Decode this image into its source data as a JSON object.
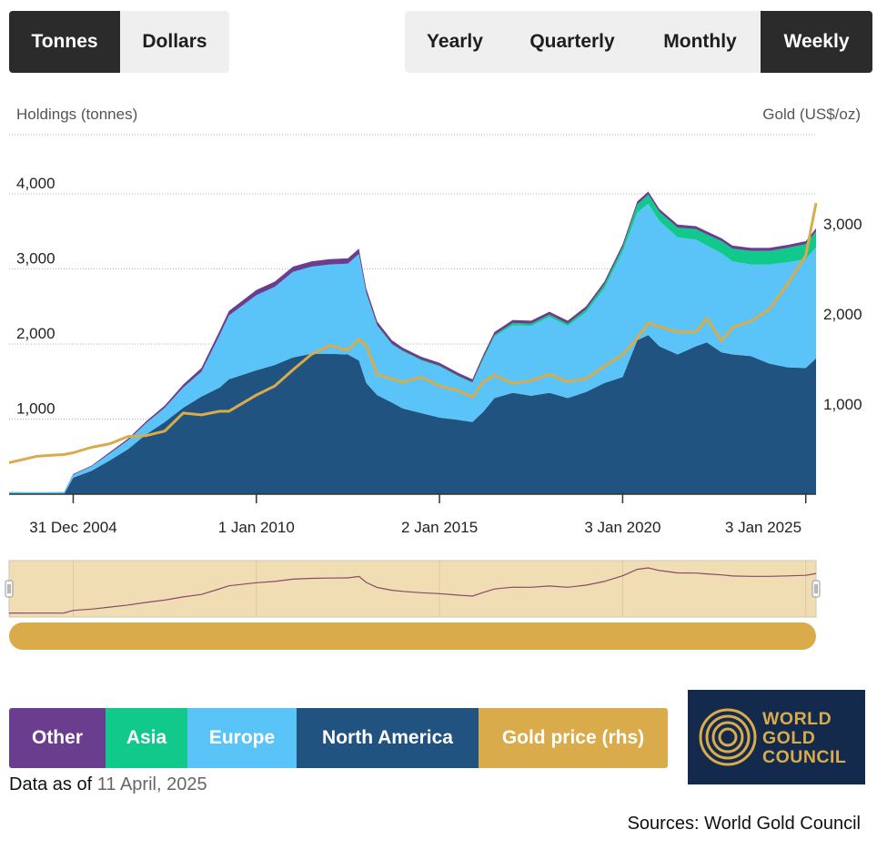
{
  "unit_toggle": {
    "options": [
      "Tonnes",
      "Dollars"
    ],
    "selected": "Tonnes"
  },
  "frequency_toggle": {
    "options": [
      "Yearly",
      "Quarterly",
      "Monthly",
      "Weekly"
    ],
    "selected": "Weekly"
  },
  "legend": [
    {
      "label": "Other",
      "color": "#6a3d8f"
    },
    {
      "label": "Asia",
      "color": "#12c98c"
    },
    {
      "label": "Europe",
      "color": "#5ac3f8"
    },
    {
      "label": "North America",
      "color": "#215380"
    },
    {
      "label": "Gold price (rhs)",
      "color": "#d9ab4a"
    }
  ],
  "data_as_of": {
    "prefix": "Data as of",
    "date": "11 April, 2025"
  },
  "logo": {
    "lines": [
      "WORLD",
      "GOLD",
      "COUNCIL"
    ]
  },
  "sources": "Sources: World Gold Council",
  "chart_data": {
    "type": "area",
    "stacked": true,
    "y_left_label": "Holdings (tonnes)",
    "y_right_label": "Gold (US$/oz)",
    "x_tick_labels": [
      "31 Dec 2004",
      "1 Jan 2010",
      "2 Jan 2015",
      "3 Jan 2020",
      "3 Jan 2025"
    ],
    "x_ticks": [
      2005.0,
      2010.0,
      2015.0,
      2020.0,
      2025.0
    ],
    "xlim": [
      2003.25,
      2025.28
    ],
    "y_left_ticks": [
      1000,
      2000,
      3000,
      4000
    ],
    "y_left_tick_labels": [
      "1,000",
      "2,000",
      "3,000",
      "4,000"
    ],
    "y_left_lim": [
      0,
      4800
    ],
    "y_right_ticks": [
      1000,
      2000,
      3000
    ],
    "y_right_tick_labels": [
      "1,000",
      "2,000",
      "3,000"
    ],
    "y_right_lim": [
      0,
      4000
    ],
    "grid": true,
    "x": [
      2003.25,
      2004.0,
      2004.75,
      2005.0,
      2005.5,
      2006.0,
      2006.5,
      2007.0,
      2007.5,
      2008.0,
      2008.5,
      2009.0,
      2009.25,
      2010.0,
      2010.5,
      2011.0,
      2011.5,
      2012.0,
      2012.5,
      2012.8,
      2013.0,
      2013.3,
      2013.7,
      2014.0,
      2014.5,
      2015.0,
      2015.5,
      2015.9,
      2016.2,
      2016.5,
      2017.0,
      2017.5,
      2018.0,
      2018.5,
      2019.0,
      2019.5,
      2020.0,
      2020.4,
      2020.7,
      2021.0,
      2021.5,
      2022.0,
      2022.3,
      2022.7,
      2023.0,
      2023.5,
      2024.0,
      2024.5,
      2025.0,
      2025.28
    ],
    "series": [
      {
        "name": "North America",
        "color": "#215380",
        "values": [
          0,
          0,
          0,
          220,
          310,
          450,
          600,
          800,
          960,
          1150,
          1300,
          1420,
          1530,
          1650,
          1720,
          1820,
          1870,
          1870,
          1860,
          1780,
          1480,
          1320,
          1220,
          1140,
          1080,
          1020,
          990,
          960,
          1100,
          1280,
          1350,
          1310,
          1350,
          1280,
          1360,
          1480,
          1560,
          2050,
          2120,
          1970,
          1860,
          1970,
          2020,
          1890,
          1860,
          1840,
          1740,
          1690,
          1680,
          1810
        ]
      },
      {
        "name": "Europe",
        "color": "#5ac3f8",
        "values": [
          30,
          25,
          30,
          40,
          60,
          90,
          120,
          150,
          190,
          270,
          330,
          700,
          850,
          1000,
          1040,
          1140,
          1160,
          1190,
          1210,
          1410,
          1190,
          920,
          770,
          760,
          700,
          680,
          580,
          520,
          700,
          820,
          900,
          930,
          1010,
          960,
          1060,
          1260,
          1670,
          1700,
          1750,
          1670,
          1560,
          1420,
          1290,
          1320,
          1240,
          1220,
          1320,
          1400,
          1450,
          1480
        ]
      },
      {
        "name": "Asia",
        "color": "#12c98c",
        "values": [
          0,
          0,
          0,
          0,
          0,
          0,
          0,
          0,
          0,
          0,
          0,
          0,
          0,
          0,
          0,
          0,
          0,
          0,
          0,
          10,
          10,
          10,
          10,
          10,
          10,
          10,
          10,
          10,
          20,
          20,
          30,
          30,
          30,
          30,
          40,
          50,
          60,
          110,
          120,
          120,
          130,
          140,
          150,
          160,
          170,
          180,
          180,
          190,
          200,
          210
        ]
      },
      {
        "name": "Other",
        "color": "#6a3d8f",
        "values": [
          0,
          0,
          0,
          10,
          10,
          20,
          20,
          25,
          30,
          40,
          50,
          60,
          60,
          70,
          70,
          70,
          70,
          70,
          70,
          70,
          60,
          50,
          50,
          40,
          40,
          40,
          40,
          40,
          40,
          40,
          40,
          40,
          40,
          40,
          40,
          40,
          40,
          40,
          40,
          40,
          40,
          40,
          40,
          40,
          40,
          40,
          40,
          40,
          40,
          40
        ]
      }
    ],
    "gold_price": {
      "name": "Gold price (rhs)",
      "color": "#d9ab4a",
      "values": [
        350,
        420,
        440,
        460,
        520,
        560,
        640,
        650,
        700,
        900,
        880,
        920,
        920,
        1100,
        1200,
        1380,
        1550,
        1650,
        1600,
        1720,
        1650,
        1330,
        1280,
        1240,
        1300,
        1200,
        1150,
        1080,
        1250,
        1320,
        1230,
        1260,
        1330,
        1250,
        1280,
        1420,
        1550,
        1730,
        1900,
        1860,
        1800,
        1800,
        1950,
        1700,
        1850,
        1920,
        2050,
        2330,
        2650,
        3230
      ]
    }
  }
}
